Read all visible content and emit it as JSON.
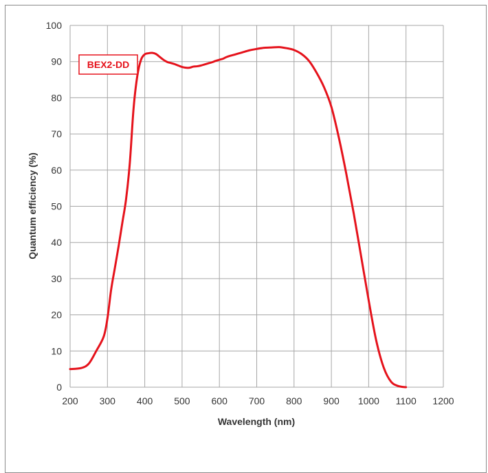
{
  "chart_data": {
    "type": "line",
    "title": "",
    "xlabel": "Wavelength (nm)",
    "ylabel": "Quantum efficiency (%)",
    "xlim": [
      200,
      1200
    ],
    "ylim": [
      0,
      100
    ],
    "x_ticks": [
      200,
      300,
      400,
      500,
      600,
      700,
      800,
      900,
      1000,
      1100,
      1200
    ],
    "y_ticks": [
      0,
      10,
      20,
      30,
      40,
      50,
      60,
      70,
      80,
      90,
      100
    ],
    "x_tick_labels": [
      "200",
      "300",
      "400",
      "500",
      "600",
      "700",
      "800",
      "900",
      "1000",
      "1100",
      "1200"
    ],
    "y_tick_labels": [
      "0",
      "10",
      "20",
      "30",
      "40",
      "50",
      "60",
      "70",
      "80",
      "90",
      "100"
    ],
    "grid": true,
    "legend_position": "top-left",
    "series": [
      {
        "name": "BEX2-DD",
        "color": "#e5121b",
        "x": [
          200,
          230,
          250,
          270,
          290,
          300,
          310,
          320,
          330,
          340,
          350,
          360,
          370,
          380,
          390,
          400,
          410,
          420,
          430,
          440,
          450,
          460,
          470,
          480,
          490,
          500,
          510,
          520,
          530,
          540,
          550,
          560,
          570,
          580,
          590,
          600,
          610,
          620,
          640,
          660,
          680,
          700,
          720,
          740,
          760,
          780,
          800,
          820,
          840,
          860,
          880,
          900,
          920,
          940,
          960,
          980,
          1000,
          1020,
          1040,
          1060,
          1080,
          1100
        ],
        "y": [
          5,
          5.3,
          6.5,
          10,
          14,
          19,
          27,
          33,
          39,
          45.5,
          52,
          62,
          77,
          86,
          90.5,
          92,
          92.3,
          92.4,
          92.1,
          91.3,
          90.5,
          89.9,
          89.6,
          89.3,
          88.9,
          88.5,
          88.3,
          88.3,
          88.6,
          88.7,
          88.9,
          89.2,
          89.5,
          89.8,
          90.2,
          90.5,
          90.8,
          91.3,
          91.9,
          92.5,
          93.1,
          93.5,
          93.8,
          93.9,
          94,
          93.7,
          93.2,
          92.1,
          90.2,
          87,
          83,
          77.5,
          69,
          59,
          48,
          36,
          24,
          13,
          5.5,
          1.5,
          0.3,
          0
        ]
      }
    ]
  }
}
